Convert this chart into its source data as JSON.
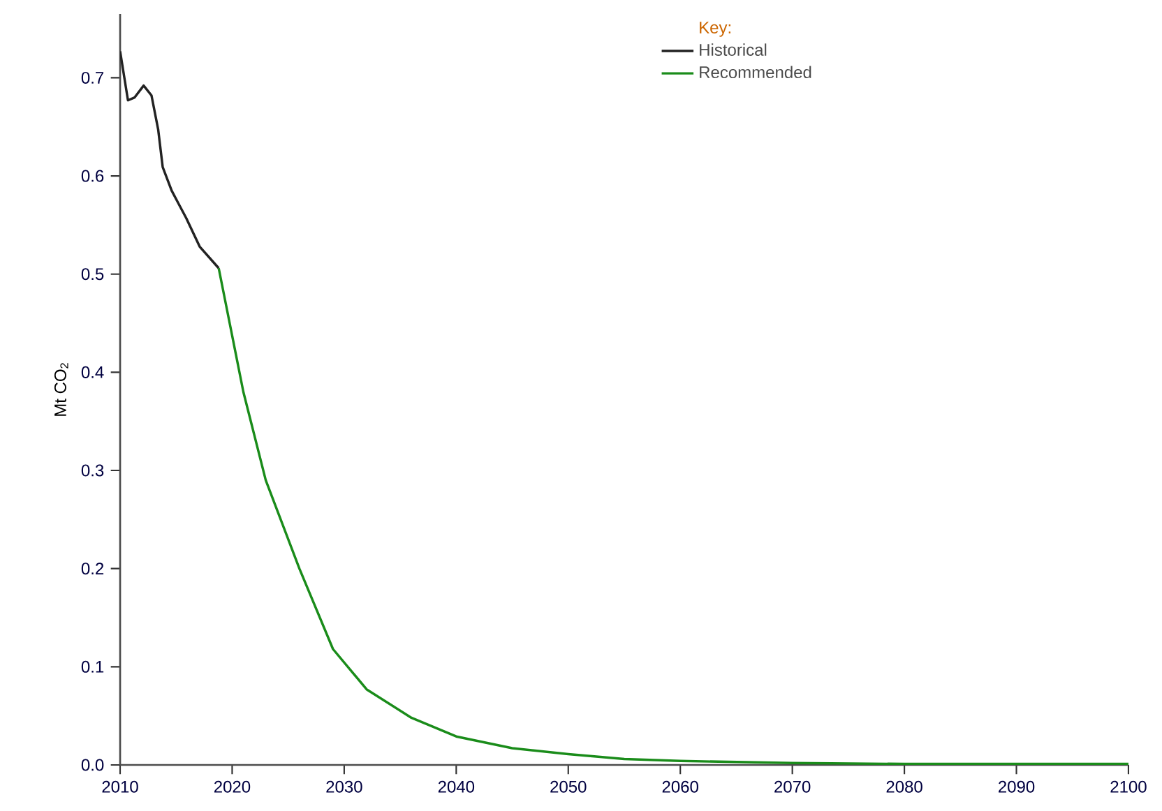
{
  "chart_data": {
    "type": "line",
    "ylabel": "Mt CO$_{2}$",
    "legend_title": "Key:",
    "legend": "top right",
    "xlim": [
      2010,
      2100
    ],
    "xticks": [
      2010,
      2020,
      2030,
      2040,
      2050,
      2060,
      2070,
      2080,
      2090,
      2100
    ],
    "ylim": [
      0,
      0.765
    ],
    "yticks": [
      {
        "value": 0,
        "label": "0.0"
      },
      0.1,
      0.2,
      0.3,
      0.4,
      0.5,
      0.6,
      0.7
    ],
    "series": [
      {
        "name": "Historical",
        "color": "#222222",
        "x": [
          2010,
          2010.7,
          2011.3,
          2012.1,
          2012.8,
          2013.4,
          2013.8,
          2014.6,
          2015.9,
          2017.1,
          2018.8
        ],
        "values": [
          0.727,
          0.677,
          0.68,
          0.692,
          0.682,
          0.647,
          0.609,
          0.585,
          0.557,
          0.528,
          0.506
        ]
      },
      {
        "name": "Recommended",
        "color": "#1a8c1a",
        "x": [
          2018.8,
          2021,
          2023,
          2026,
          2029,
          2032,
          2036,
          2040,
          2045,
          2050,
          2055,
          2060,
          2070,
          2080,
          2090,
          2100
        ],
        "values": [
          0.506,
          0.38,
          0.29,
          0.2,
          0.118,
          0.077,
          0.048,
          0.029,
          0.017,
          0.011,
          0.006,
          0.004,
          0.002,
          0.001,
          0.001,
          0.001
        ]
      }
    ]
  }
}
